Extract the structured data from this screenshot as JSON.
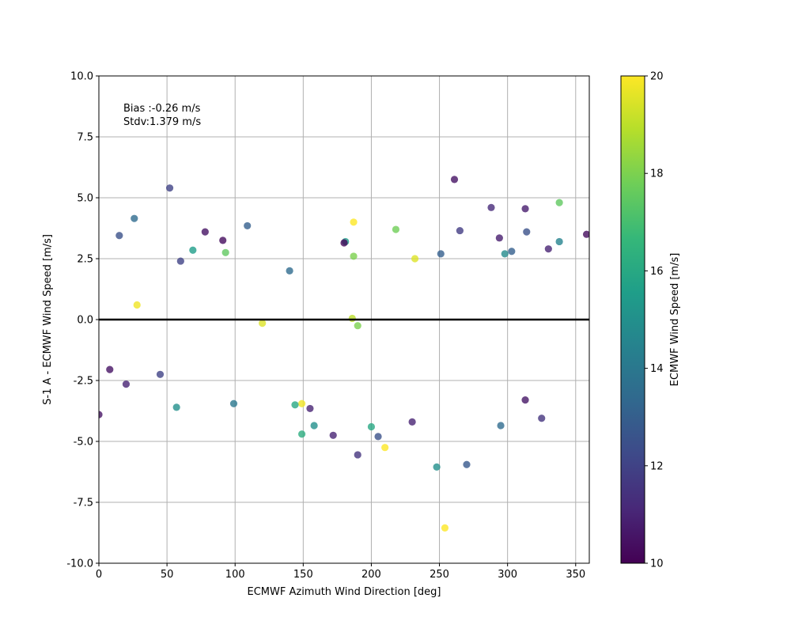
{
  "chart_data": {
    "type": "scatter",
    "xlabel": "ECMWF Azimuth Wind Direction [deg]",
    "ylabel": "S-1 A - ECMWF Wind Speed [m/s]",
    "xlim": [
      0,
      360
    ],
    "ylim": [
      -10,
      10
    ],
    "x_ticks": [
      0,
      50,
      100,
      150,
      200,
      250,
      300,
      350
    ],
    "y_ticks": [
      -10.0,
      -7.5,
      -5.0,
      -2.5,
      0.0,
      2.5,
      5.0,
      7.5,
      10.0
    ],
    "grid": true,
    "reference_line_y": 0,
    "annotations": [
      "Bias :-0.26 m/s",
      "Stdv:1.379 m/s"
    ],
    "colorbar": {
      "label": "ECMWF Wind Speed [m/s]",
      "range": [
        10,
        20
      ],
      "ticks": [
        10,
        12,
        14,
        16,
        18,
        20
      ],
      "colormap": "viridis"
    },
    "colors": {
      "viridis": [
        "#440154",
        "#482878",
        "#3e4989",
        "#31688e",
        "#26828e",
        "#1f9e89",
        "#35b779",
        "#6ece58",
        "#b5de2b",
        "#fde725"
      ],
      "reference_line": "#000000",
      "grid": "#b0b0b0"
    },
    "points": [
      [
        52,
        5.4,
        12.0
      ],
      [
        261,
        5.75,
        10.5
      ],
      [
        26,
        4.15,
        13.5
      ],
      [
        109,
        3.85,
        13.0
      ],
      [
        288,
        4.6,
        11.2
      ],
      [
        313,
        4.55,
        10.8
      ],
      [
        338,
        4.8,
        17.5
      ],
      [
        187,
        4.0,
        20.0
      ],
      [
        218,
        3.7,
        17.8
      ],
      [
        265,
        3.65,
        11.8
      ],
      [
        78,
        3.6,
        10.5
      ],
      [
        15,
        3.45,
        12.5
      ],
      [
        91,
        3.25,
        10.3
      ],
      [
        181,
        3.2,
        15.5
      ],
      [
        180,
        3.15,
        10.2
      ],
      [
        358,
        3.5,
        10.3
      ],
      [
        314,
        3.6,
        12.5
      ],
      [
        294,
        3.35,
        10.8
      ],
      [
        251,
        2.7,
        13.0
      ],
      [
        330,
        2.9,
        11.0
      ],
      [
        69,
        2.85,
        15.5
      ],
      [
        232,
        2.5,
        19.5
      ],
      [
        187,
        2.6,
        18.0
      ],
      [
        93,
        2.75,
        17.5
      ],
      [
        303,
        2.8,
        13.0
      ],
      [
        298,
        2.7,
        14.8
      ],
      [
        28,
        0.6,
        19.8
      ],
      [
        186,
        0.05,
        19.0
      ],
      [
        120,
        -0.15,
        19.5
      ],
      [
        149,
        -3.45,
        19.8
      ],
      [
        190,
        -0.25,
        18.0
      ],
      [
        144,
        -3.5,
        16.0
      ],
      [
        210,
        -5.25,
        20.0
      ],
      [
        254,
        -8.55,
        20.0
      ],
      [
        190,
        -5.55,
        11.5
      ],
      [
        248,
        -6.05,
        15.0
      ],
      [
        270,
        -5.95,
        12.8
      ],
      [
        295,
        -4.35,
        13.5
      ],
      [
        200,
        -4.4,
        16.0
      ],
      [
        149,
        -4.7,
        16.2
      ],
      [
        158,
        -4.35,
        15.0
      ],
      [
        205,
        -4.8,
        12.5
      ],
      [
        230,
        -4.2,
        11.0
      ],
      [
        172,
        -4.75,
        11.0
      ],
      [
        0,
        -3.9,
        10.5
      ],
      [
        57,
        -3.6,
        15.0
      ],
      [
        99,
        -3.45,
        14.0
      ],
      [
        325,
        -4.05,
        11.5
      ],
      [
        313,
        -3.3,
        10.6
      ],
      [
        155,
        -3.65,
        11.0
      ],
      [
        8,
        -2.05,
        10.5
      ],
      [
        20,
        -2.65,
        11.0
      ],
      [
        45,
        -2.25,
        12.0
      ],
      [
        338,
        3.2,
        14.5
      ],
      [
        60,
        2.4,
        12.0
      ],
      [
        140,
        2.0,
        13.5
      ]
    ]
  }
}
